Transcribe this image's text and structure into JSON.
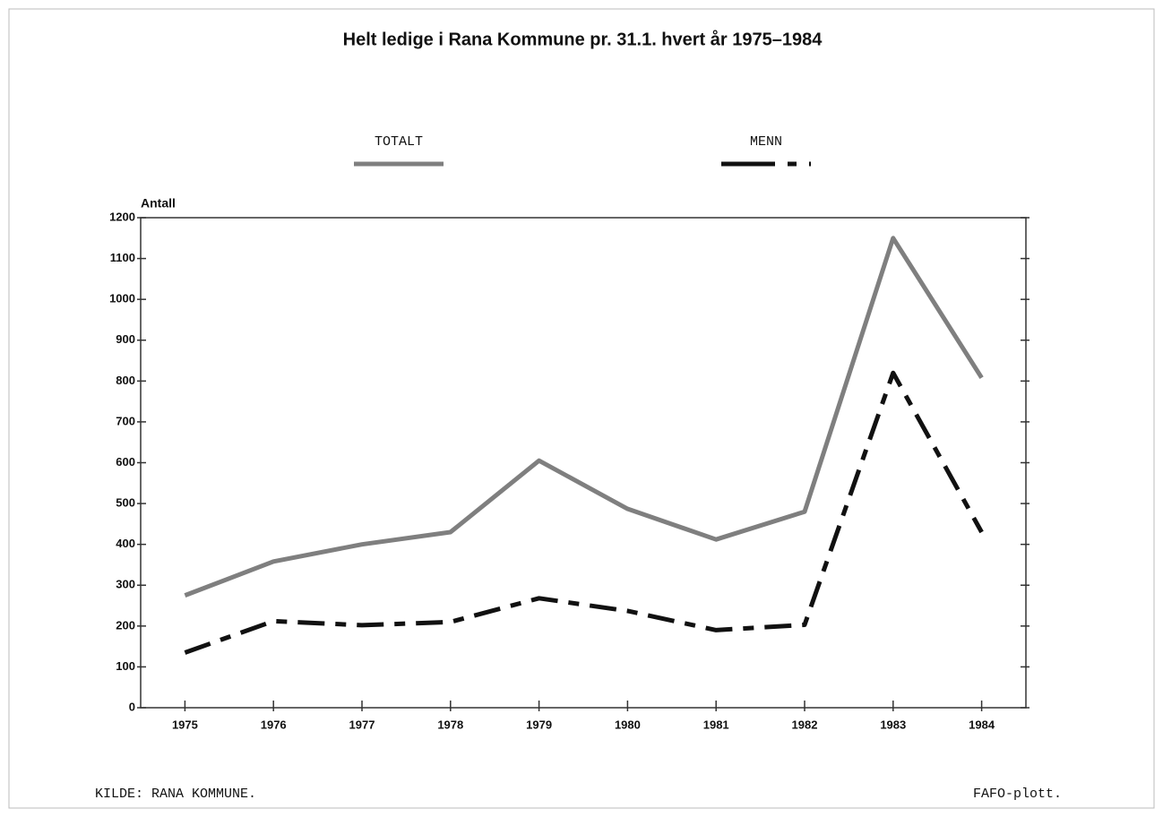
{
  "chart_data": {
    "type": "line",
    "title": "Helt ledige i Rana Kommune pr. 31.1. hvert år 1975–1984",
    "y_label": "Antall",
    "categories": [
      "1975",
      "1976",
      "1977",
      "1978",
      "1979",
      "1980",
      "1981",
      "1982",
      "1983",
      "1984"
    ],
    "series": [
      {
        "name": "TOTALT",
        "color": "#7f7f7f",
        "line_style": "solid",
        "values": [
          275,
          358,
          400,
          430,
          605,
          487,
          412,
          480,
          1150,
          808
        ]
      },
      {
        "name": "MENN",
        "color": "#111111",
        "line_style": "dashed",
        "values": [
          135,
          212,
          202,
          210,
          268,
          237,
          190,
          203,
          820,
          430
        ]
      }
    ],
    "ylim": [
      0,
      1200
    ],
    "yticks": [
      0,
      100,
      200,
      300,
      400,
      500,
      600,
      700,
      800,
      900,
      1000,
      1100,
      1200
    ],
    "source": "KILDE: RANA KOMMUNE.",
    "credit": "FAFO-plott."
  }
}
